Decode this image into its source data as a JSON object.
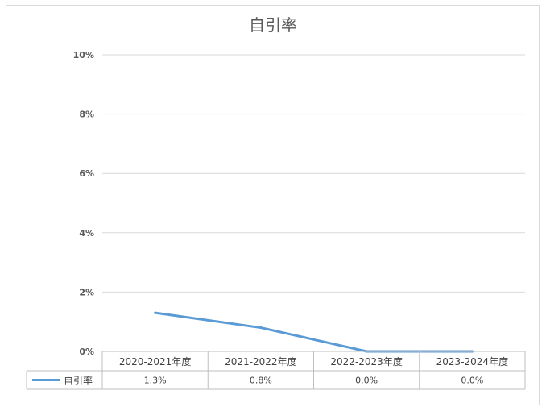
{
  "chart_data": {
    "type": "line",
    "title": "自引率",
    "categories": [
      "2020-2021年度",
      "2021-2022年度",
      "2022-2023年度",
      "2023-2024年度"
    ],
    "series": [
      {
        "name": "自引率",
        "values": [
          1.3,
          0.8,
          0.0,
          0.0
        ],
        "labels": [
          "1.3%",
          "0.8%",
          "0.0%",
          "0.0%"
        ],
        "color": "#5b9bd5"
      }
    ],
    "ylim": [
      0,
      10
    ],
    "yticks": [
      "0%",
      "2%",
      "4%",
      "6%",
      "8%",
      "10%"
    ],
    "grid": true,
    "legend": "data-table"
  }
}
